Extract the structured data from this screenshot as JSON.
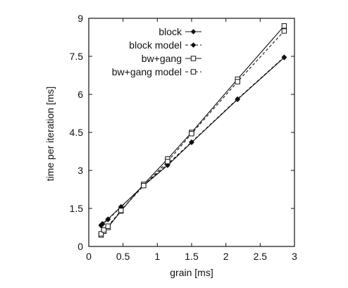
{
  "chart_data": {
    "type": "line",
    "title": "",
    "xlabel": "grain [ms]",
    "ylabel": "time per iteration [ms]",
    "xlim": [
      0,
      3
    ],
    "ylim": [
      0,
      9
    ],
    "xticks": [
      0,
      0.5,
      1,
      1.5,
      2,
      2.5,
      3
    ],
    "xtick_labels": [
      "0",
      "0.5",
      "1",
      "1.5",
      "2",
      "2.5",
      "3"
    ],
    "yticks": [
      0,
      1.5,
      3,
      4.5,
      6,
      7.5,
      9
    ],
    "ytick_labels": [
      "0",
      "1.5",
      "3",
      "4.5",
      "6",
      "7.5",
      "9"
    ],
    "grid": false,
    "legend_position": "top-right",
    "series": [
      {
        "name": "block",
        "marker": "diamond",
        "line": "solid",
        "x": [
          0.18,
          0.2,
          0.28,
          0.47,
          0.8,
          1.15,
          1.5,
          2.17,
          2.85
        ],
        "y": [
          0.85,
          0.9,
          1.08,
          1.57,
          2.4,
          3.2,
          4.1,
          5.8,
          7.45
        ]
      },
      {
        "name": "block model",
        "marker": "diamond",
        "line": "dashed",
        "x": [
          0.18,
          0.2,
          0.28,
          0.47,
          0.8,
          1.15,
          1.5,
          2.17,
          2.85
        ],
        "y": [
          0.82,
          0.88,
          1.06,
          1.55,
          2.42,
          3.25,
          4.12,
          5.82,
          7.47
        ]
      },
      {
        "name": "bw+gang",
        "marker": "square",
        "line": "solid",
        "x": [
          0.18,
          0.22,
          0.28,
          0.47,
          0.8,
          1.15,
          1.5,
          2.17,
          2.85
        ],
        "y": [
          0.45,
          0.6,
          0.75,
          1.4,
          2.45,
          3.45,
          4.5,
          6.6,
          8.7
        ]
      },
      {
        "name": "bw+gang model",
        "marker": "square",
        "line": "dashed",
        "x": [
          0.18,
          0.22,
          0.28,
          0.47,
          0.8,
          1.15,
          1.5,
          2.17,
          2.85
        ],
        "y": [
          0.5,
          0.65,
          0.8,
          1.42,
          2.4,
          3.35,
          4.45,
          6.5,
          8.5
        ]
      }
    ]
  }
}
